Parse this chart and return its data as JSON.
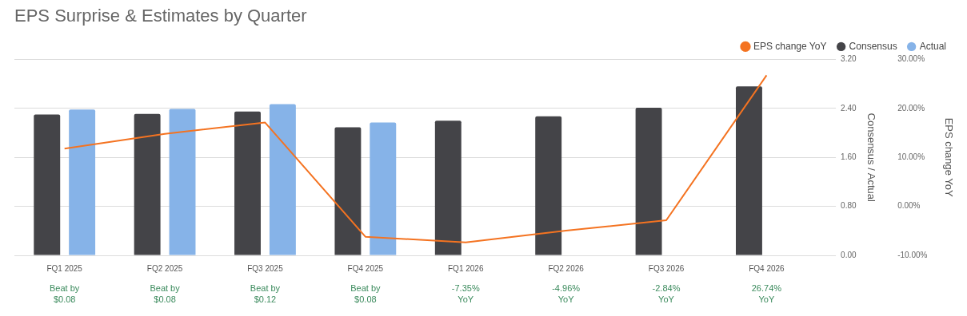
{
  "chart_data": {
    "type": "bar",
    "title": "EPS Surprise & Estimates by Quarter",
    "categories": [
      "FQ1 2025",
      "FQ2 2025",
      "FQ3 2025",
      "FQ4 2025",
      "FQ1 2026",
      "FQ2 2026",
      "FQ3 2026",
      "FQ4 2026"
    ],
    "series": [
      {
        "name": "EPS change YoY",
        "type": "line",
        "axis": "y2",
        "color": "#f47321",
        "values": [
          11.8,
          14.8,
          17.1,
          -6.2,
          -7.35,
          -4.96,
          -2.84,
          26.74
        ]
      },
      {
        "name": "Consensus",
        "color": "#444448",
        "values": [
          2.3,
          2.31,
          2.35,
          2.09,
          2.2,
          2.27,
          2.41,
          2.76
        ]
      },
      {
        "name": "Actual",
        "color": "#86b3e8",
        "values": [
          2.38,
          2.39,
          2.47,
          2.17,
          null,
          null,
          null,
          null
        ]
      }
    ],
    "ylabel": "Consensus / Actual",
    "y2label": "EPS change YoY",
    "ylim": [
      0,
      3.2
    ],
    "yticks": [
      {
        "value": 0,
        "label": "0.00"
      },
      {
        "value": 0.8,
        "label": "0.80"
      },
      {
        "value": 1.6,
        "label": "1.60"
      },
      {
        "value": 2.4,
        "label": "2.40"
      },
      {
        "value": 3.2,
        "label": "3.20"
      }
    ],
    "y2lim": [
      -10,
      30
    ],
    "y2ticks": [
      {
        "value": -10,
        "label": "-10.00%"
      },
      {
        "value": 0,
        "label": "0.00%"
      },
      {
        "value": 10,
        "label": "10.00%"
      },
      {
        "value": 20,
        "label": "20.00%"
      },
      {
        "value": 30,
        "label": "30.00%"
      }
    ],
    "grid": "y",
    "legend": "top right",
    "marker": "none",
    "annotations": [
      "Beat by\n$0.08",
      "Beat by\n$0.08",
      "Beat by\n$0.12",
      "Beat by\n$0.08",
      "-7.35%\nYoY",
      "-4.96%\nYoY",
      "-2.84%\nYoY",
      "26.74%\nYoY"
    ]
  }
}
